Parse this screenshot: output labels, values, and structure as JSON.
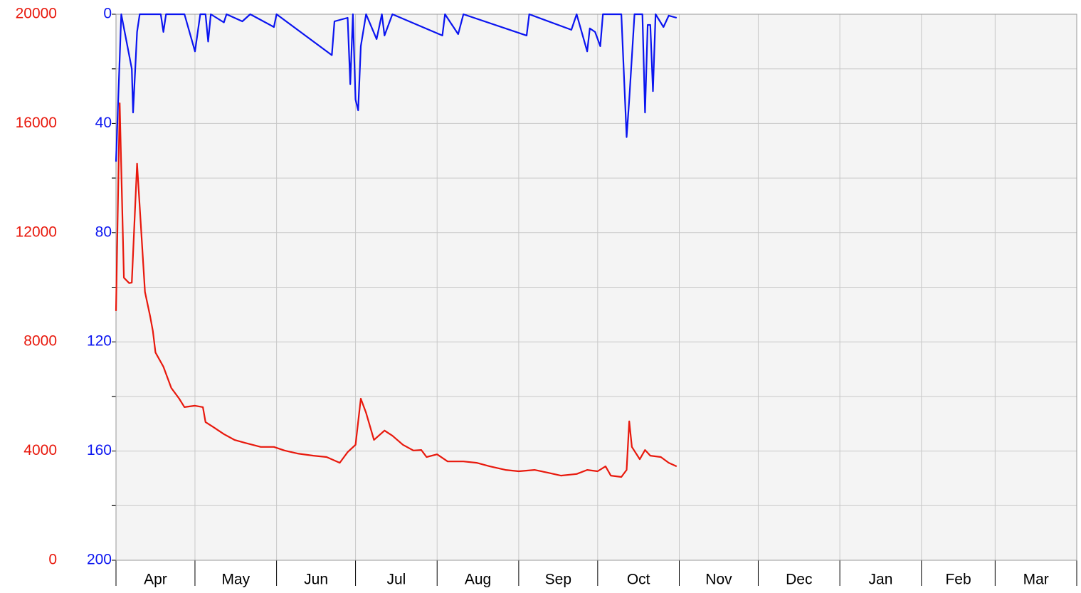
{
  "chart_data": {
    "type": "line",
    "categories": [
      "Apr",
      "May",
      "Jun",
      "Jul",
      "Aug",
      "Sep",
      "Oct",
      "Nov",
      "Dec",
      "Jan",
      "Feb",
      "Mar"
    ],
    "xlim": [
      0,
      365
    ],
    "xticks": [
      0,
      30,
      61,
      91,
      122,
      153,
      183,
      214,
      244,
      275,
      306,
      334,
      365
    ],
    "ylim": [
      0,
      20000
    ],
    "yticks": [
      0,
      4000,
      8000,
      12000,
      16000,
      20000
    ],
    "minor_yticks": [
      2000,
      6000,
      10000,
      14000,
      18000
    ],
    "y2lim": [
      0,
      200
    ],
    "y2ticks": [
      0,
      40,
      80,
      120,
      160,
      200
    ],
    "minor_y2ticks": [
      20,
      60,
      100,
      140,
      180
    ],
    "y2_inverted": true,
    "grid": true,
    "series": [
      {
        "color": "#e8180c",
        "x": [
          0,
          1.4,
          3,
          5,
          6,
          8,
          11,
          13,
          14,
          15,
          18,
          21,
          24,
          26,
          30,
          33,
          34,
          37,
          41,
          45,
          49,
          55,
          60,
          64,
          69,
          75,
          80,
          85,
          88,
          91,
          93,
          95,
          98,
          102,
          105,
          109,
          113,
          116,
          118,
          122,
          126,
          132,
          137,
          142,
          148,
          153,
          159,
          164,
          169,
          175,
          179,
          183,
          186,
          188,
          192,
          194,
          195,
          196,
          199,
          201,
          203,
          207,
          210,
          213
        ],
        "values": [
          9130,
          16740,
          10350,
          10150,
          10170,
          14530,
          9830,
          8920,
          8400,
          7610,
          7090,
          6310,
          5920,
          5610,
          5660,
          5610,
          5060,
          4880,
          4620,
          4410,
          4300,
          4150,
          4150,
          4020,
          3910,
          3830,
          3780,
          3570,
          3960,
          4230,
          5920,
          5400,
          4410,
          4750,
          4560,
          4230,
          4020,
          4040,
          3780,
          3880,
          3620,
          3620,
          3570,
          3440,
          3310,
          3260,
          3310,
          3210,
          3100,
          3160,
          3310,
          3260,
          3440,
          3100,
          3050,
          3310,
          5090,
          4150,
          3700,
          4040,
          3830,
          3780,
          3570,
          3440
        ]
      },
      {
        "color": "#0a14f0",
        "axis": "y2",
        "x": [
          0,
          2,
          6,
          6.5,
          8,
          9,
          17,
          18,
          19,
          26,
          30,
          32,
          34,
          35,
          36,
          41,
          42,
          48,
          51,
          60,
          61,
          82,
          83,
          88,
          89,
          90,
          91,
          92,
          93,
          95,
          99,
          101,
          102,
          105,
          124,
          125,
          130,
          132,
          156,
          157,
          173,
          175,
          179,
          180,
          182,
          184,
          185,
          192,
          194,
          195,
          197,
          200,
          201,
          202,
          203,
          204,
          205,
          208,
          210,
          213
        ],
        "values": [
          54,
          0,
          20,
          36,
          6.5,
          0,
          0,
          6.5,
          0,
          0,
          13.6,
          0,
          0,
          10,
          0,
          3,
          0,
          2.6,
          0,
          4.7,
          0,
          15,
          2.6,
          1.3,
          25.6,
          0,
          31.3,
          35.2,
          11.7,
          0,
          9.1,
          0,
          7.8,
          0,
          7.8,
          0,
          7.3,
          0,
          7.8,
          0,
          5.7,
          0,
          13.6,
          5.2,
          6.5,
          11.7,
          0,
          0,
          45,
          31.3,
          0,
          0,
          36,
          3.9,
          3.9,
          28.2,
          0,
          4.7,
          0.5,
          1.3
        ]
      }
    ]
  }
}
